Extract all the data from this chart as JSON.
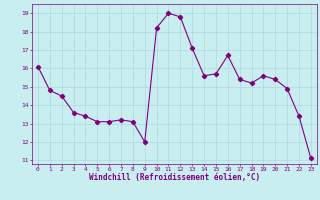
{
  "x": [
    0,
    1,
    2,
    3,
    4,
    5,
    6,
    7,
    8,
    9,
    10,
    11,
    12,
    13,
    14,
    15,
    16,
    17,
    18,
    19,
    20,
    21,
    22,
    23
  ],
  "y": [
    16.1,
    14.8,
    14.5,
    13.6,
    13.4,
    13.1,
    13.1,
    13.2,
    13.1,
    12.0,
    18.2,
    19.0,
    18.8,
    17.1,
    15.6,
    15.7,
    16.7,
    15.4,
    15.2,
    15.6,
    15.4,
    14.9,
    13.4,
    11.1
  ],
  "line_color": "#800080",
  "marker": "D",
  "marker_size": 2.2,
  "bg_color": "#c8eef0",
  "grid_color": "#b0d8dc",
  "xlabel": "Windchill (Refroidissement éolien,°C)",
  "xlabel_color": "#800080",
  "tick_color": "#800080",
  "ylim": [
    10.8,
    19.5
  ],
  "xlim": [
    -0.5,
    23.5
  ],
  "yticks": [
    11,
    12,
    13,
    14,
    15,
    16,
    17,
    18,
    19
  ],
  "xticks": [
    0,
    1,
    2,
    3,
    4,
    5,
    6,
    7,
    8,
    9,
    10,
    11,
    12,
    13,
    14,
    15,
    16,
    17,
    18,
    19,
    20,
    21,
    22,
    23
  ]
}
